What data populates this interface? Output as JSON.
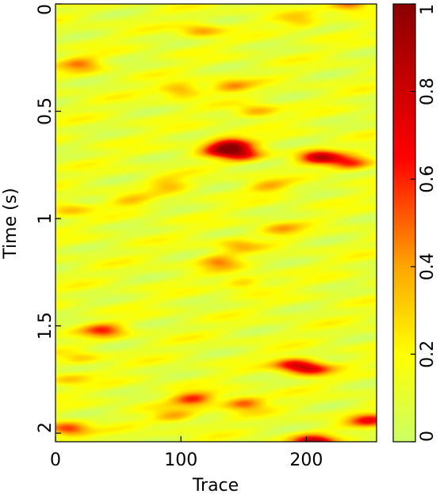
{
  "chart_data": {
    "type": "heatmap",
    "title": "",
    "xlabel": "Trace",
    "ylabel": "Time (s)",
    "xlim": [
      0,
      256
    ],
    "ylim": [
      2.04,
      0
    ],
    "x_ticks": [
      0,
      100,
      200
    ],
    "x_tick_labels": [
      "0",
      "100",
      "200"
    ],
    "y_ticks": [
      0,
      0.5,
      1,
      1.5,
      2
    ],
    "y_tick_labels": [
      "0",
      "0.5",
      "1",
      "1.5",
      "2"
    ],
    "colorbar": {
      "range": [
        0,
        1
      ],
      "ticks": [
        0,
        0.2,
        0.4,
        0.6,
        0.8,
        1
      ],
      "tick_labels": [
        "0",
        "0.2",
        "0.4",
        "0.6",
        "0.8",
        "1"
      ],
      "colormap": [
        "#ccff66",
        "#ffff00",
        "#ffa500",
        "#ff0000",
        "#8b0000"
      ]
    },
    "background_level": 0.12,
    "hotspots": [
      {
        "trace": 20,
        "time": 0.28,
        "value": 0.45
      },
      {
        "trace": 115,
        "time": 0.12,
        "value": 0.4
      },
      {
        "trace": 235,
        "time": 0.0,
        "value": 0.55
      },
      {
        "trace": 195,
        "time": 0.08,
        "value": 0.35
      },
      {
        "trace": 100,
        "time": 0.4,
        "value": 0.45
      },
      {
        "trace": 140,
        "time": 0.38,
        "value": 0.4
      },
      {
        "trace": 160,
        "time": 0.5,
        "value": 0.4
      },
      {
        "trace": 140,
        "time": 0.65,
        "value": 0.7
      },
      {
        "trace": 148,
        "time": 0.7,
        "value": 0.65
      },
      {
        "trace": 130,
        "time": 0.68,
        "value": 0.55
      },
      {
        "trace": 210,
        "time": 0.71,
        "value": 0.75
      },
      {
        "trace": 235,
        "time": 0.74,
        "value": 0.6
      },
      {
        "trace": 90,
        "time": 0.84,
        "value": 0.35
      },
      {
        "trace": 170,
        "time": 0.85,
        "value": 0.35
      },
      {
        "trace": 10,
        "time": 0.95,
        "value": 0.35
      },
      {
        "trace": 60,
        "time": 0.92,
        "value": 0.3
      },
      {
        "trace": 180,
        "time": 1.05,
        "value": 0.35
      },
      {
        "trace": 145,
        "time": 1.12,
        "value": 0.35
      },
      {
        "trace": 130,
        "time": 1.2,
        "value": 0.45
      },
      {
        "trace": 150,
        "time": 1.3,
        "value": 0.35
      },
      {
        "trace": 38,
        "time": 1.52,
        "value": 0.55
      },
      {
        "trace": 190,
        "time": 1.68,
        "value": 0.65
      },
      {
        "trace": 205,
        "time": 1.7,
        "value": 0.55
      },
      {
        "trace": 10,
        "time": 1.75,
        "value": 0.3
      },
      {
        "trace": 110,
        "time": 1.84,
        "value": 0.6
      },
      {
        "trace": 150,
        "time": 1.86,
        "value": 0.55
      },
      {
        "trace": 95,
        "time": 1.92,
        "value": 0.4
      },
      {
        "trace": 10,
        "time": 1.98,
        "value": 0.6
      },
      {
        "trace": 250,
        "time": 1.94,
        "value": 0.6
      },
      {
        "trace": 205,
        "time": 2.04,
        "value": 0.85
      },
      {
        "trace": 20,
        "time": 1.65,
        "value": 0.3
      }
    ]
  }
}
